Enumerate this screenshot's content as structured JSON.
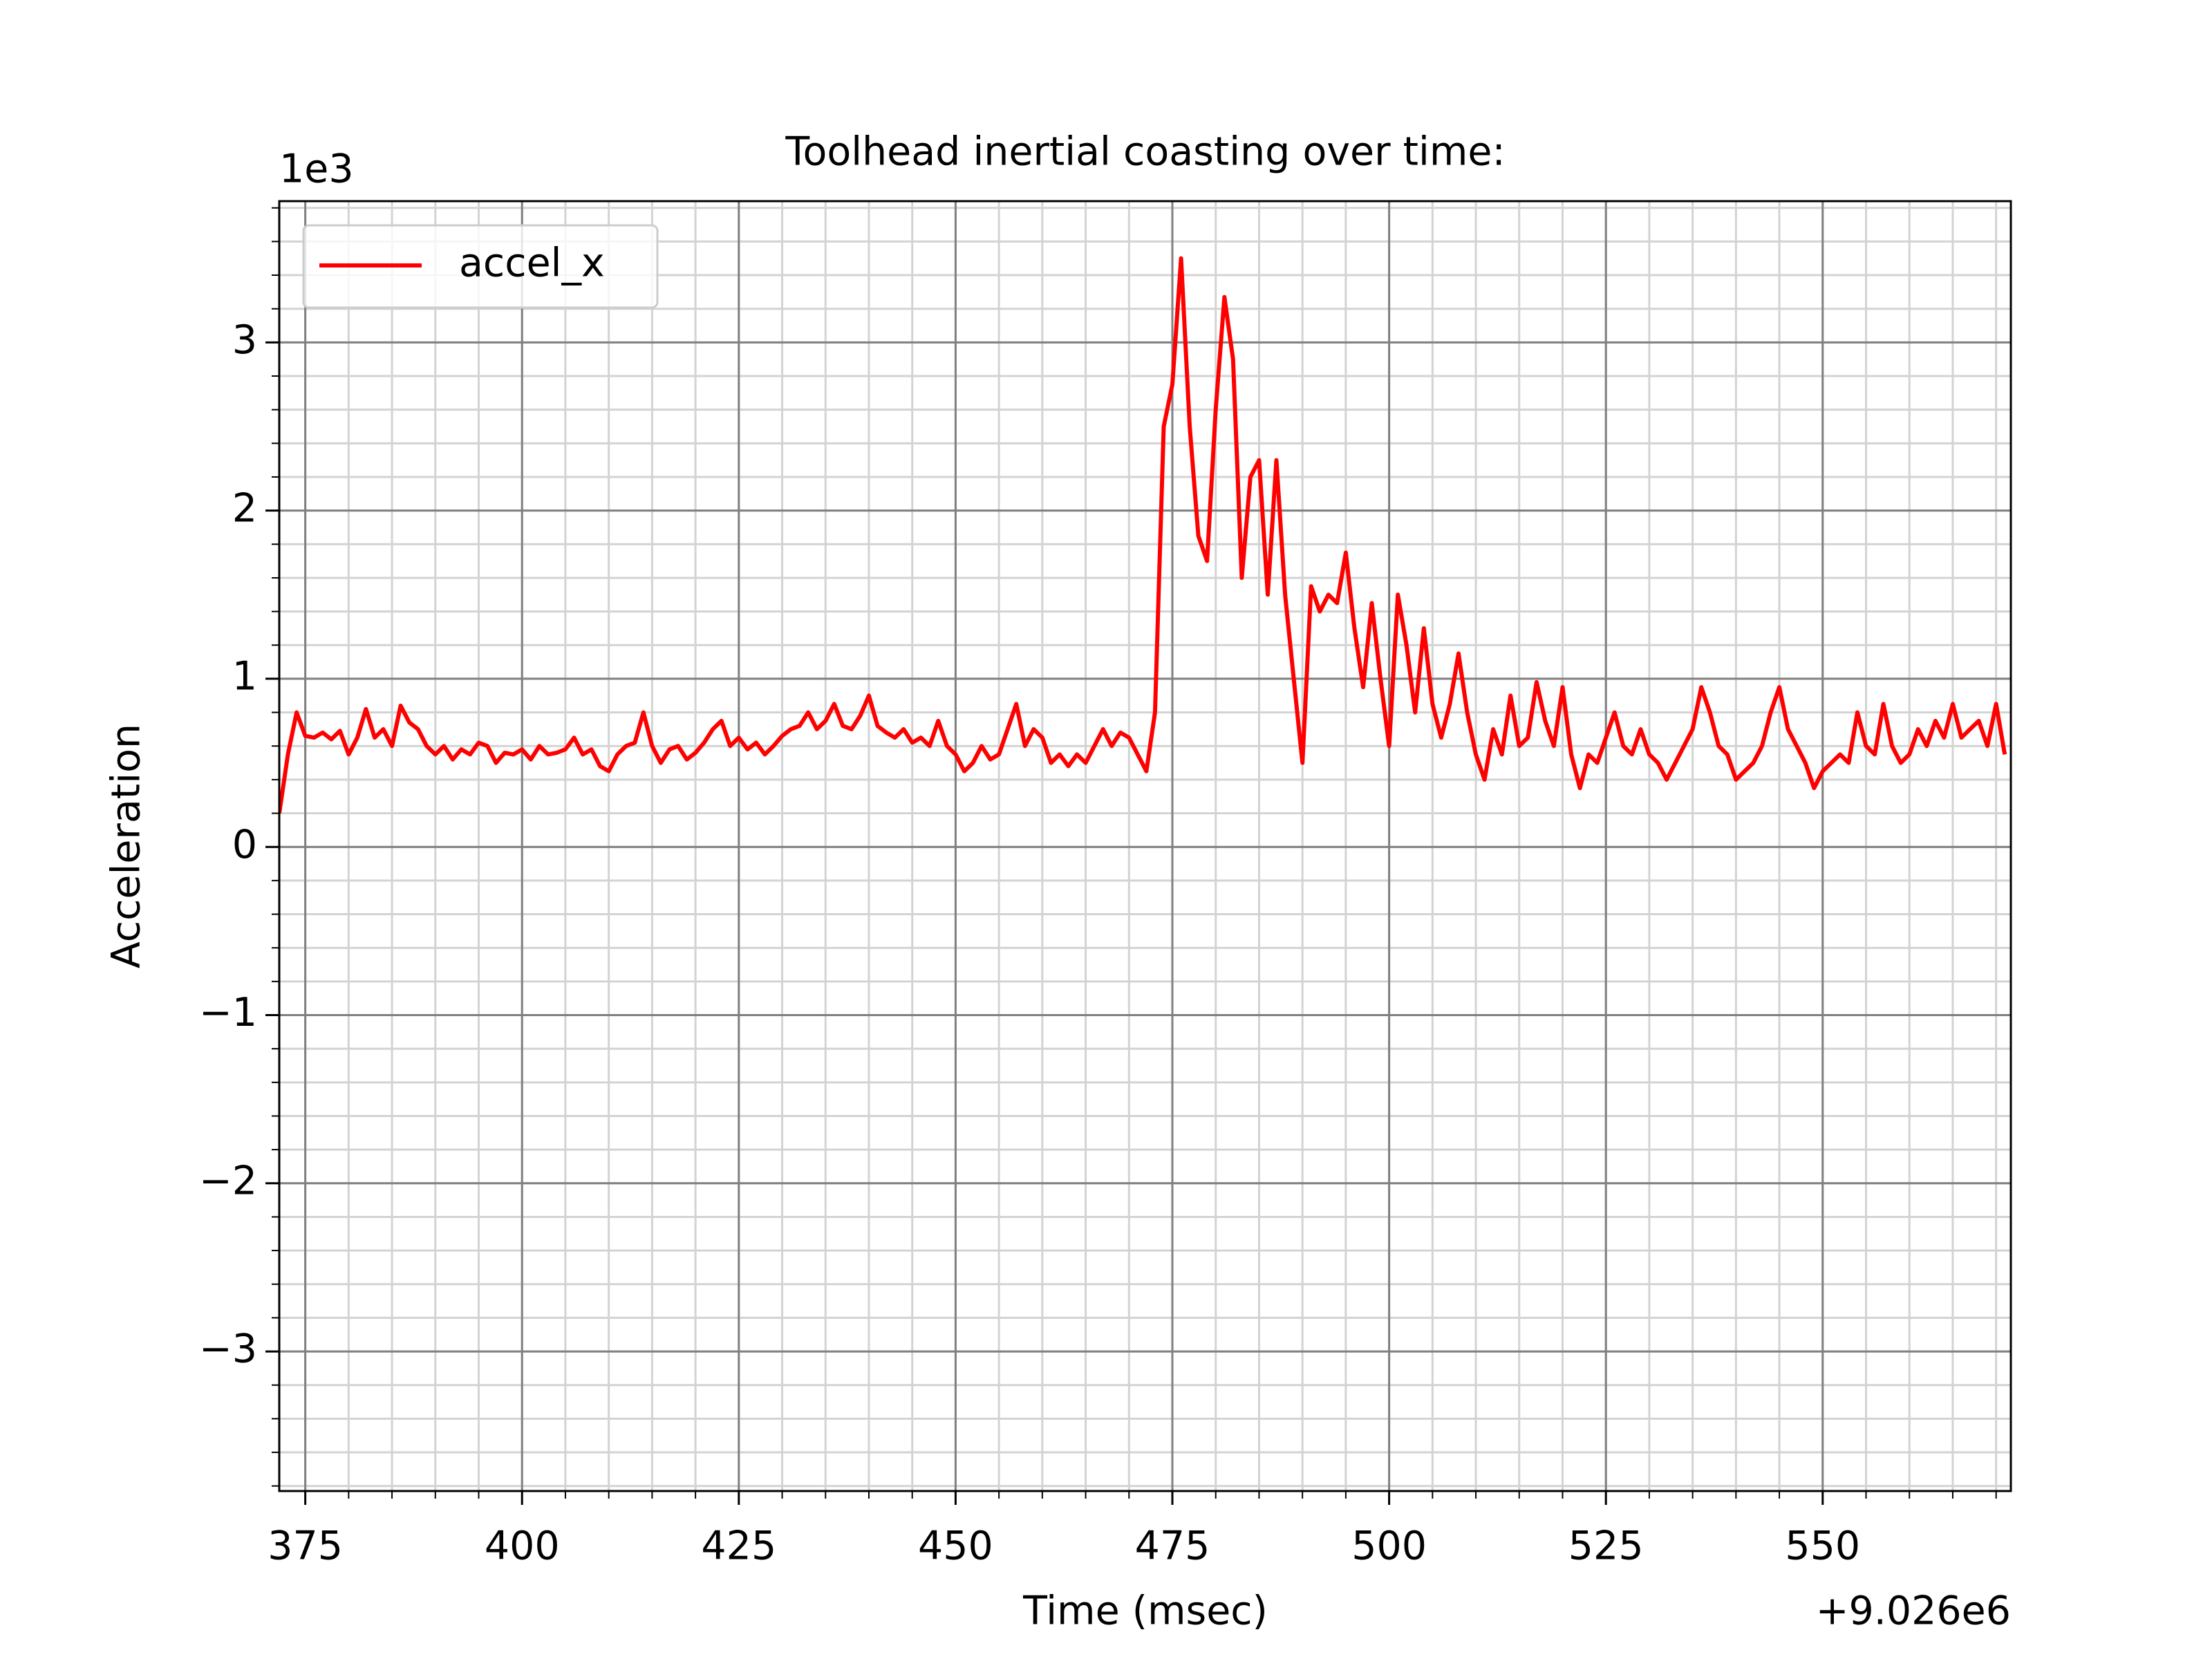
{
  "chart_data": {
    "type": "line",
    "title": "Toolhead inertial coasting over time:",
    "xlabel": "Time (msec)",
    "ylabel": "Acceleration",
    "x_offset_label": "+9.026e6",
    "y_scale_label": "1e3",
    "x": [
      372,
      373,
      374,
      375,
      376,
      377,
      378,
      379,
      380,
      381,
      382,
      383,
      384,
      385,
      386,
      387,
      388,
      389,
      390,
      391,
      392,
      393,
      394,
      395,
      396,
      397,
      398,
      399,
      400,
      401,
      402,
      403,
      404,
      405,
      406,
      407,
      408,
      409,
      410,
      411,
      412,
      413,
      414,
      415,
      416,
      417,
      418,
      419,
      420,
      421,
      422,
      423,
      424,
      425,
      426,
      427,
      428,
      429,
      430,
      431,
      432,
      433,
      434,
      435,
      436,
      437,
      438,
      439,
      440,
      441,
      442,
      443,
      444,
      445,
      446,
      447,
      448,
      449,
      450,
      451,
      452,
      453,
      454,
      455,
      456,
      457,
      458,
      459,
      460,
      461,
      462,
      463,
      464,
      465,
      466,
      467,
      468,
      469,
      470,
      471,
      472,
      473,
      474,
      475,
      476,
      477,
      478,
      479,
      480,
      481,
      482,
      483,
      484,
      485,
      486,
      487,
      488,
      489,
      490,
      491,
      492,
      493,
      494,
      495,
      496,
      497,
      498,
      499,
      500,
      501,
      502,
      503,
      504,
      505,
      506,
      507,
      508,
      509,
      510,
      511,
      512,
      513,
      514,
      515,
      516,
      517,
      518,
      519,
      520,
      521,
      522,
      523,
      524,
      525,
      526,
      527,
      528,
      529,
      530,
      531,
      532,
      533,
      534,
      535,
      536,
      537,
      538,
      539,
      540,
      541,
      542,
      543,
      544,
      545,
      546,
      547,
      548,
      549,
      550,
      551,
      552,
      553,
      554,
      555,
      556,
      557,
      558,
      559,
      560,
      561,
      562,
      563,
      564,
      565,
      566,
      567,
      568,
      569,
      570,
      571
    ],
    "series": [
      {
        "name": "accel_x",
        "color": "#ff0000",
        "values": [
          0.2,
          0.55,
          0.8,
          0.66,
          0.65,
          0.68,
          0.64,
          0.69,
          0.55,
          0.65,
          0.82,
          0.65,
          0.7,
          0.6,
          0.84,
          0.74,
          0.7,
          0.6,
          0.55,
          0.6,
          0.52,
          0.58,
          0.55,
          0.62,
          0.6,
          0.5,
          0.56,
          0.55,
          0.58,
          0.52,
          0.6,
          0.55,
          0.56,
          0.58,
          0.65,
          0.55,
          0.58,
          0.48,
          0.45,
          0.55,
          0.6,
          0.62,
          0.8,
          0.6,
          0.5,
          0.58,
          0.6,
          0.52,
          0.56,
          0.62,
          0.7,
          0.75,
          0.6,
          0.65,
          0.58,
          0.62,
          0.55,
          0.6,
          0.66,
          0.7,
          0.72,
          0.8,
          0.7,
          0.75,
          0.85,
          0.72,
          0.7,
          0.78,
          0.9,
          0.72,
          0.68,
          0.65,
          0.7,
          0.62,
          0.65,
          0.6,
          0.75,
          0.6,
          0.55,
          0.45,
          0.5,
          0.6,
          0.52,
          0.55,
          0.7,
          0.85,
          0.6,
          0.7,
          0.65,
          0.5,
          0.55,
          0.48,
          0.55,
          0.5,
          0.6,
          0.7,
          0.6,
          0.68,
          0.65,
          0.55,
          0.45,
          0.8,
          2.5,
          2.75,
          3.5,
          2.5,
          1.85,
          1.7,
          2.6,
          3.27,
          2.9,
          1.6,
          2.2,
          2.3,
          1.5,
          2.3,
          1.5,
          1.0,
          0.5,
          1.55,
          1.4,
          1.5,
          1.45,
          1.75,
          1.3,
          0.95,
          1.45,
          1.0,
          0.6,
          1.5,
          1.2,
          0.8,
          1.3,
          0.85,
          0.65,
          0.85,
          1.15,
          0.8,
          0.55,
          0.4,
          0.7,
          0.55,
          0.9,
          0.6,
          0.65,
          0.98,
          0.75,
          0.6,
          0.95,
          0.55,
          0.35,
          0.55,
          0.5,
          0.65,
          0.8,
          0.6,
          0.55,
          0.7,
          0.55,
          0.5,
          0.4,
          0.5,
          0.6,
          0.7,
          0.95,
          0.8,
          0.6,
          0.55,
          0.4,
          0.45,
          0.5,
          0.6,
          0.8,
          0.95,
          0.7,
          0.6,
          0.5,
          0.35,
          0.45,
          0.5,
          0.55,
          0.5,
          0.8,
          0.6,
          0.55,
          0.85,
          0.6,
          0.5,
          0.55,
          0.7,
          0.6,
          0.75,
          0.65,
          0.85,
          0.65,
          0.7,
          0.75,
          0.6,
          0.85,
          0.55
        ]
      }
    ],
    "xlim": [
      372,
      571.7
    ],
    "ylim": [
      -3.83,
      3.84
    ],
    "xticks": [
      375,
      400,
      425,
      450,
      475,
      500,
      525,
      550
    ],
    "yticks": [
      {
        "value": -3,
        "label": "−3"
      },
      {
        "value": -2,
        "label": "−2"
      },
      {
        "value": -1,
        "label": "−1"
      },
      0,
      1,
      2,
      3
    ],
    "xminorticks": [
      375,
      380,
      385,
      390,
      395,
      400,
      405,
      410,
      415,
      420,
      425,
      430,
      435,
      440,
      445,
      450,
      455,
      460,
      465,
      470,
      475,
      480,
      485,
      490,
      495,
      500,
      505,
      510,
      515,
      520,
      525,
      530,
      535,
      540,
      545,
      550,
      555,
      560,
      565,
      570
    ],
    "yminorticks": [
      -3.8,
      -3.6,
      -3.4,
      -3.2,
      -3,
      -2.8,
      -2.6,
      -2.4,
      -2.2,
      -2,
      -1.8,
      -1.6,
      -1.4,
      -1.2,
      -1,
      -0.8,
      -0.6,
      -0.4,
      -0.2,
      0,
      0.2,
      0.4,
      0.6,
      0.8,
      1,
      1.2,
      1.4,
      1.6,
      1.8,
      2,
      2.2,
      2.4,
      2.6,
      2.8,
      3,
      3.2,
      3.4,
      3.6,
      3.8
    ],
    "grid": true,
    "minor_grid": true,
    "legend": "upper left"
  }
}
